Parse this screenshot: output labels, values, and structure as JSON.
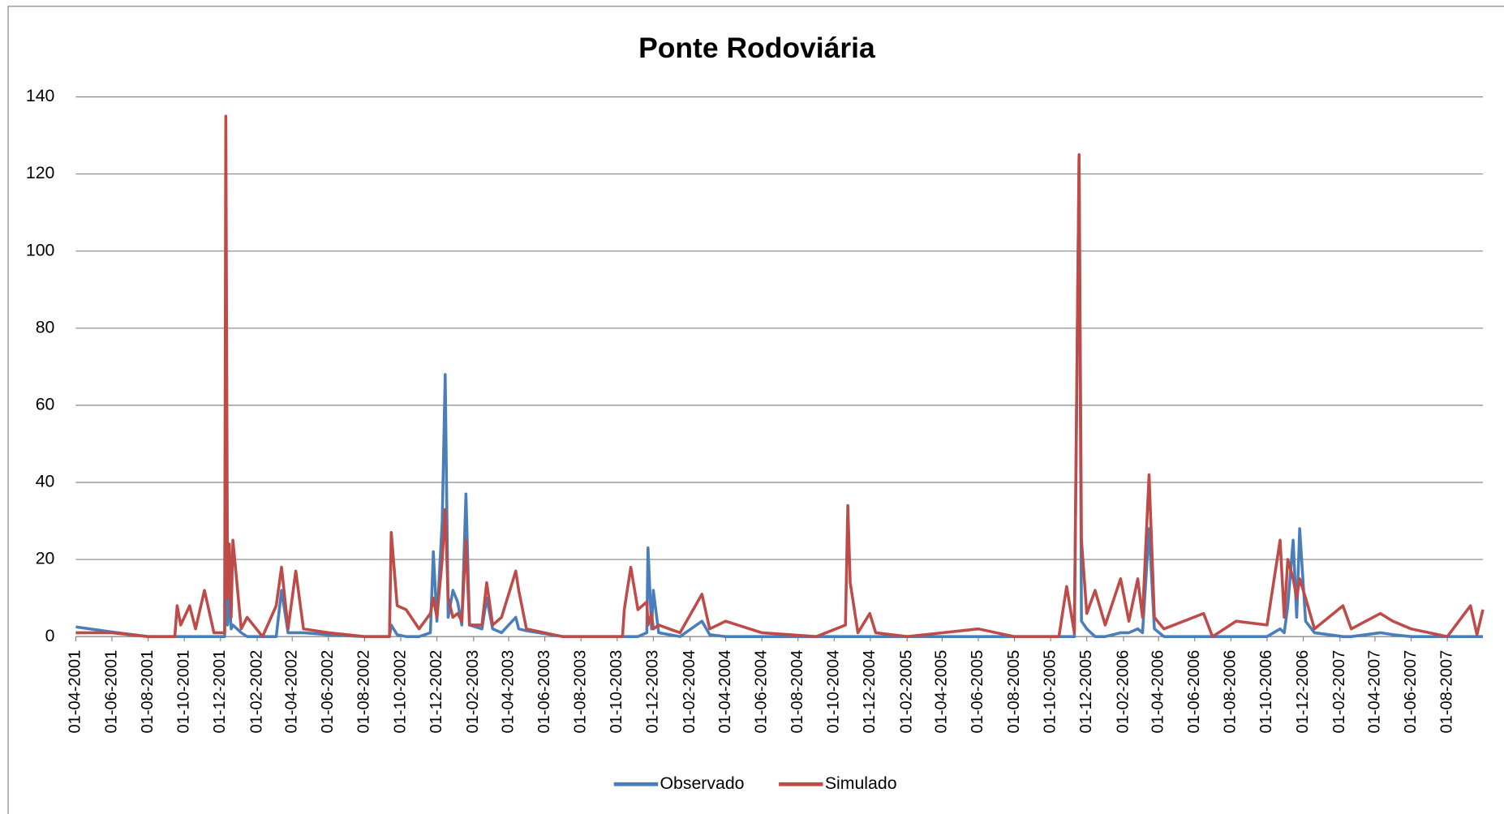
{
  "chart_data": {
    "type": "line",
    "title": "Ponte Rodoviária",
    "x": [
      "01-04-2001",
      "01-06-2001",
      "01-08-2001",
      "15-09-2001",
      "19-09-2001",
      "25-09-2001",
      "10-10-2001",
      "20-10-2001",
      "04-11-2001",
      "20-11-2001",
      "08-12-2001",
      "10-12-2001",
      "13-12-2001",
      "16-12-2001",
      "19-12-2001",
      "22-12-2001",
      "05-01-2002",
      "15-01-2002",
      "10-02-2002",
      "05-03-2002",
      "14-03-2002",
      "25-03-2002",
      "07-04-2002",
      "20-04-2002",
      "01-06-2002",
      "01-08-2002",
      "12-09-2002",
      "15-09-2002",
      "25-09-2002",
      "10-10-2002",
      "01-11-2002",
      "20-11-2002",
      "25-11-2002",
      "01-12-2002",
      "10-12-2002",
      "15-12-2002",
      "20-12-2002",
      "28-12-2002",
      "05-01-2003",
      "12-01-2003",
      "19-01-2003",
      "25-01-2003",
      "15-02-2003",
      "23-02-2003",
      "05-03-2003",
      "20-03-2003",
      "13-04-2003",
      "18-04-2003",
      "01-05-2003",
      "01-07-2003",
      "10-10-2003",
      "13-10-2003",
      "24-10-2003",
      "05-11-2003",
      "20-11-2003",
      "22-11-2003",
      "28-11-2003",
      "01-12-2003",
      "10-12-2003",
      "15-01-2004",
      "21-02-2004",
      "05-03-2004",
      "01-04-2004",
      "01-06-2004",
      "01-09-2004",
      "20-10-2004",
      "24-10-2004",
      "28-10-2004",
      "10-11-2004",
      "30-11-2004",
      "10-12-2004",
      "01-02-2005",
      "01-06-2005",
      "01-08-2005",
      "15-10-2005",
      "28-10-2005",
      "10-11-2005",
      "18-11-2005",
      "22-11-2005",
      "01-12-2005",
      "15-12-2005",
      "01-01-2006",
      "27-01-2006",
      "10-02-2006",
      "25-02-2006",
      "05-03-2006",
      "16-03-2006",
      "25-03-2006",
      "10-04-2006",
      "16-06-2006",
      "01-07-2006",
      "10-08-2006",
      "01-10-2006",
      "23-10-2006",
      "30-10-2006",
      "05-11-2006",
      "14-11-2006",
      "20-11-2006",
      "25-11-2006",
      "05-12-2006",
      "20-12-2006",
      "06-02-2007",
      "20-02-2007",
      "10-04-2007",
      "01-05-2007",
      "01-06-2007",
      "01-08-2007",
      "09-09-2007",
      "20-09-2007",
      "30-09-2007"
    ],
    "series": [
      {
        "name": "Observado",
        "color": "#4a7ebb",
        "values": [
          2.5,
          1.2,
          0,
          0,
          0,
          0,
          0,
          0,
          0,
          0,
          0,
          17,
          3,
          10,
          2,
          3,
          1,
          0,
          0,
          0,
          12,
          1,
          1,
          1,
          0.5,
          0,
          0,
          3,
          0.5,
          0,
          0,
          1,
          22,
          4,
          30,
          68,
          5,
          12,
          9,
          3,
          37,
          3,
          2,
          10,
          2,
          1,
          5,
          2,
          1.5,
          0,
          0,
          0,
          0,
          0,
          1,
          23,
          2,
          12,
          1,
          0,
          4,
          0.5,
          0,
          0,
          0,
          0,
          0,
          0,
          0,
          0,
          0,
          0,
          0,
          0,
          0,
          0,
          0,
          124,
          4,
          2,
          0,
          0,
          1,
          1,
          2,
          1,
          28,
          2,
          0,
          0,
          0,
          0,
          0,
          2,
          1,
          8,
          25,
          5,
          28,
          4,
          1,
          0,
          0,
          1,
          0.5,
          0,
          0,
          0,
          0,
          0
        ]
      },
      {
        "name": "Simulado",
        "color": "#be4b48",
        "values": [
          1,
          1,
          0,
          0,
          8,
          3,
          8,
          2,
          12,
          1,
          1,
          135,
          10,
          24,
          5,
          25,
          2,
          5,
          0,
          8,
          18,
          2,
          17,
          2,
          1,
          0,
          0,
          27,
          8,
          7,
          2,
          6,
          10,
          5,
          20,
          33,
          10,
          5,
          6,
          4,
          25,
          3,
          3,
          14,
          3,
          5,
          17,
          12,
          2,
          0,
          0,
          7,
          18,
          7,
          9,
          3,
          6,
          2,
          3,
          1,
          11,
          2,
          4,
          1,
          0,
          3,
          34,
          14,
          1,
          6,
          1,
          0,
          2,
          0,
          0,
          13,
          1,
          125,
          25,
          6,
          12,
          3,
          15,
          4,
          15,
          5,
          42,
          5,
          2,
          6,
          0,
          4,
          3,
          25,
          5,
          20,
          15,
          10,
          15,
          10,
          2,
          8,
          2,
          6,
          4,
          2,
          0,
          8,
          0.5,
          7
        ]
      }
    ],
    "xlim": [
      "01-04-2001",
      "30-09-2007"
    ],
    "xticks": [
      "01-04-2001",
      "01-06-2001",
      "01-08-2001",
      "01-10-2001",
      "01-12-2001",
      "01-02-2002",
      "01-04-2002",
      "01-06-2002",
      "01-08-2002",
      "01-10-2002",
      "01-12-2002",
      "01-02-2003",
      "01-04-2003",
      "01-06-2003",
      "01-08-2003",
      "01-10-2003",
      "01-12-2003",
      "01-02-2004",
      "01-04-2004",
      "01-06-2004",
      "01-08-2004",
      "01-10-2004",
      "01-12-2004",
      "01-02-2005",
      "01-04-2005",
      "01-06-2005",
      "01-08-2005",
      "01-10-2005",
      "01-12-2005",
      "01-02-2006",
      "01-04-2006",
      "01-06-2006",
      "01-08-2006",
      "01-10-2006",
      "01-12-2006",
      "01-02-2007",
      "01-04-2007",
      "01-06-2007",
      "01-08-2007"
    ],
    "ylim": [
      0,
      140
    ],
    "yticks": [
      0,
      20,
      40,
      60,
      80,
      100,
      120,
      140
    ],
    "grid": true,
    "legend": "bottom"
  }
}
